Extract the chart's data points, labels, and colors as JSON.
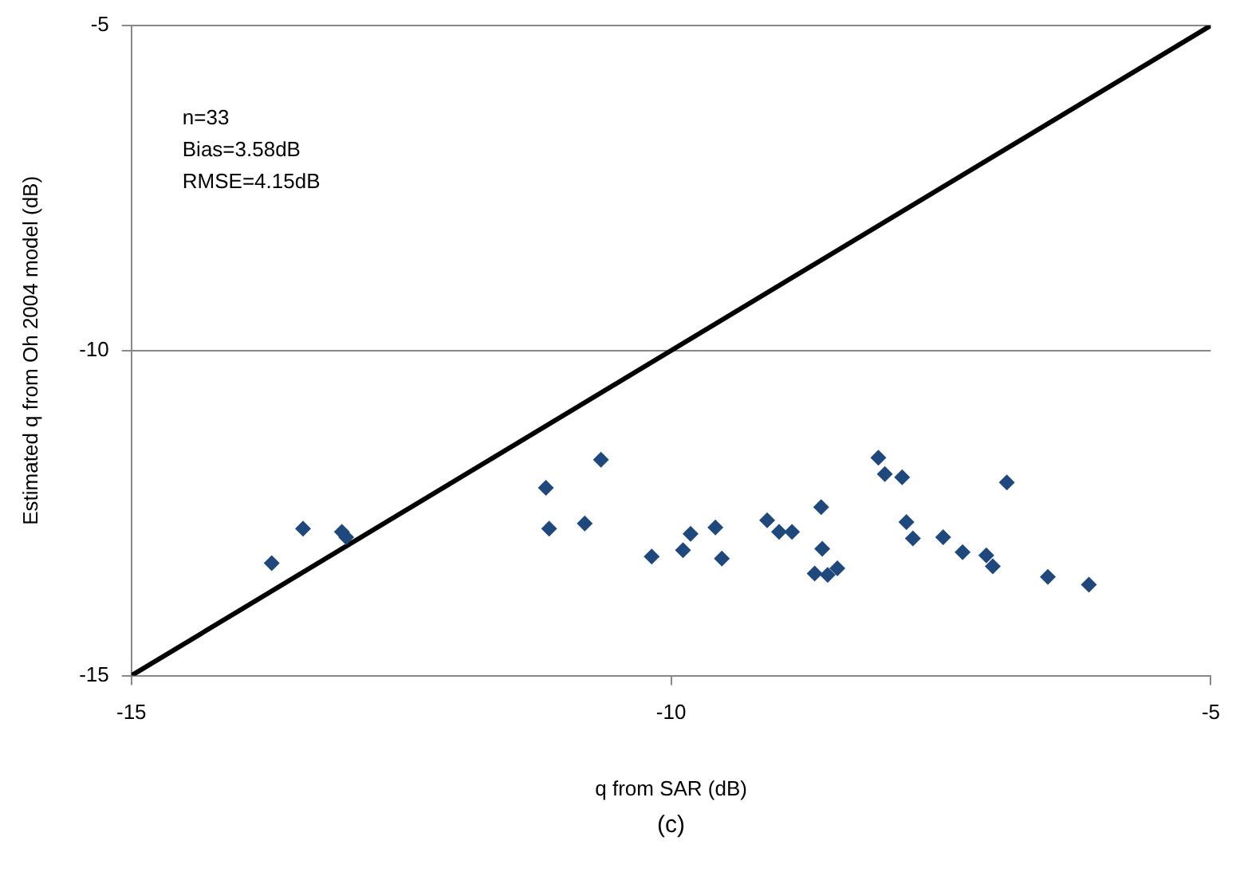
{
  "chart_data": {
    "type": "scatter",
    "xlabel": "q from SAR (dB)",
    "ylabel": "Estimated q from Oh 2004 model (dB)",
    "xlim": [
      -15,
      -5
    ],
    "xticks": [
      -15,
      -10,
      -5
    ],
    "ylim": [
      -15,
      -5
    ],
    "yticks": [
      -15,
      -10,
      -5
    ],
    "grid": "y",
    "legend": false,
    "marker": "diamond",
    "annotations": [
      "n=33",
      "Bias=3.58dB",
      "RMSE=4.15dB",
      "(c)"
    ],
    "series": [
      {
        "color": "#1f497d",
        "x": [
          -13.7,
          -13.41,
          -13.05,
          -13.01,
          -11.16,
          -11.13,
          -10.8,
          -10.65,
          -10.18,
          -9.89,
          -9.82,
          -9.59,
          -9.53,
          -9.11,
          -9.0,
          -8.88,
          -8.61,
          -8.6,
          -8.67,
          -8.55,
          -8.46,
          -8.08,
          -8.02,
          -7.86,
          -7.82,
          -7.76,
          -7.48,
          -7.3,
          -7.08,
          -7.02,
          -6.89,
          -6.51,
          -6.13
        ],
        "values": [
          -13.27,
          -12.74,
          -12.79,
          -12.87,
          -12.11,
          -12.74,
          -12.66,
          -11.68,
          -13.17,
          -13.07,
          -12.82,
          -12.72,
          -13.2,
          -12.61,
          -12.79,
          -12.79,
          -12.41,
          -13.05,
          -13.43,
          -13.45,
          -13.35,
          -11.65,
          -11.9,
          -11.95,
          -12.64,
          -12.89,
          -12.87,
          -13.1,
          -13.15,
          -13.32,
          -12.03,
          -13.48,
          -13.6
        ]
      },
      {
        "type": "line",
        "color": "#000000",
        "x": [
          -15,
          -5
        ],
        "values": [
          -15,
          -5
        ],
        "marker": "none",
        "line_style": "solid"
      }
    ]
  }
}
